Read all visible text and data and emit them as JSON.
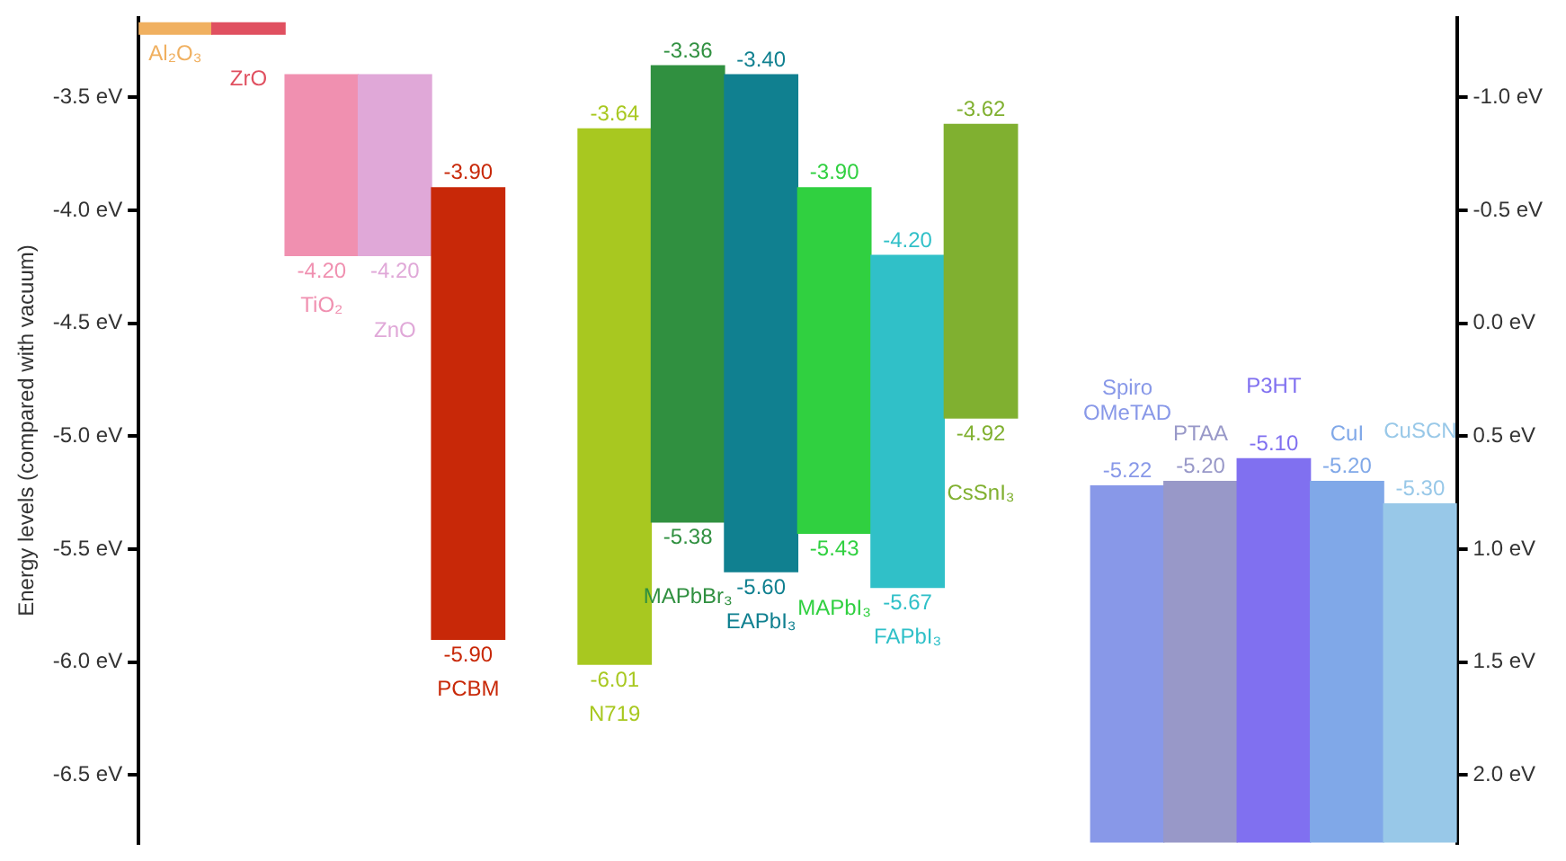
{
  "chart_data": {
    "type": "bar",
    "ylabel": "Energy levels (compared with vacuum)",
    "categories": [
      "Al₂O₃",
      "ZrO",
      "TiO₂",
      "ZnO",
      "PCBM",
      null,
      "N719",
      "MAPbBr₃",
      "EAPbI₃",
      "MAPbI₃",
      "FAPbI₃",
      "CsSnI₃",
      null,
      "Spiro OMeTAD",
      "PTAA",
      "P3HT",
      "CuI",
      "CuSCN"
    ],
    "base": [
      -3.22,
      -3.22,
      -4.2,
      -4.2,
      -5.9,
      null,
      -6.01,
      -5.38,
      -5.6,
      -5.43,
      -5.67,
      -4.92,
      null,
      -6.8,
      -6.8,
      -6.8,
      -6.8,
      -6.8
    ],
    "values": [
      0.05,
      0.05,
      0.8,
      0.8,
      2.0,
      null,
      2.37,
      2.02,
      2.2,
      1.53,
      1.47,
      1.3,
      null,
      1.58,
      1.6,
      1.7,
      1.6,
      1.5
    ],
    "colors": [
      "#f0b060",
      "#e05060",
      "#f090b0",
      "#e0a8d8",
      "#c82808",
      "#ffffff",
      "#a8c820",
      "#309040",
      "#108090",
      "#30d040",
      "#30c0c8",
      "#80b030",
      "#ffffff",
      "#8898e8",
      "#9898c8",
      "#8070f0",
      "#80a8e8",
      "#98c8e8"
    ],
    "ylim": [
      -6.8,
      -3.15
    ],
    "yticks": [
      {
        "value": -3.5,
        "label": "-3.5 eV"
      },
      {
        "value": -4.0,
        "label": "-4.0 eV"
      },
      {
        "value": -4.5,
        "label": "-4.5 eV"
      },
      {
        "value": -5.0,
        "label": "-5.0 eV"
      },
      {
        "value": -5.5,
        "label": "-5.5 eV"
      },
      {
        "value": -6.0,
        "label": "-6.0 eV"
      },
      {
        "value": -6.5,
        "label": "-6.5 eV"
      }
    ],
    "y2lim": [
      2.3,
      -1.35
    ],
    "y2ticks": [
      {
        "value": -1.0,
        "label": "-1.0 eV"
      },
      {
        "value": -0.5,
        "label": "-0.5 eV"
      },
      {
        "value": 0.0,
        "label": "0.0 eV"
      },
      {
        "value": 0.5,
        "label": "0.5 eV"
      },
      {
        "value": 1.0,
        "label": "1.0 eV"
      },
      {
        "value": 1.5,
        "label": "1.5 eV"
      },
      {
        "value": 2.0,
        "label": "2.0 eV"
      }
    ],
    "grid": false,
    "legend": false,
    "annotations": [
      {
        "text": "-4.20",
        "x": "TiO₂",
        "y": -4.2
      },
      {
        "text": "-4.20",
        "x": "ZnO",
        "y": -4.2
      },
      {
        "text": "-3.90",
        "x": "PCBM",
        "y": -3.9
      },
      {
        "text": "-5.90",
        "x": "PCBM",
        "y": -5.9
      },
      {
        "text": "-3.64",
        "x": "N719",
        "y": -3.64
      },
      {
        "text": "-6.01",
        "x": "N719",
        "y": -6.01
      },
      {
        "text": "-3.36",
        "x": "MAPbBr₃",
        "y": -3.36
      },
      {
        "text": "-5.38",
        "x": "MAPbBr₃",
        "y": -5.38
      },
      {
        "text": "-3.40",
        "x": "EAPbI₃",
        "y": -3.4
      },
      {
        "text": "-5.60",
        "x": "EAPbI₃",
        "y": -5.6
      },
      {
        "text": "-3.90",
        "x": "MAPbI₃",
        "y": -3.9
      },
      {
        "text": "-5.43",
        "x": "MAPbI₃",
        "y": -5.43
      },
      {
        "text": "-4.20",
        "x": "FAPbI₃",
        "y": -4.2
      },
      {
        "text": "-5.67",
        "x": "FAPbI₃",
        "y": -5.67
      },
      {
        "text": "-3.62",
        "x": "CsSnI₃",
        "y": -3.62
      },
      {
        "text": "-4.92",
        "x": "CsSnI₃",
        "y": -4.92
      },
      {
        "text": "-5.22",
        "x": "Spiro OMeTAD",
        "y": -5.22
      },
      {
        "text": "-5.20",
        "x": "PTAA",
        "y": -5.2
      },
      {
        "text": "-5.10",
        "x": "P3HT",
        "y": -5.1
      },
      {
        "text": "-5.20",
        "x": "CuI",
        "y": -5.2
      },
      {
        "text": "-5.30",
        "x": "CuSCN",
        "y": -5.3
      }
    ]
  }
}
